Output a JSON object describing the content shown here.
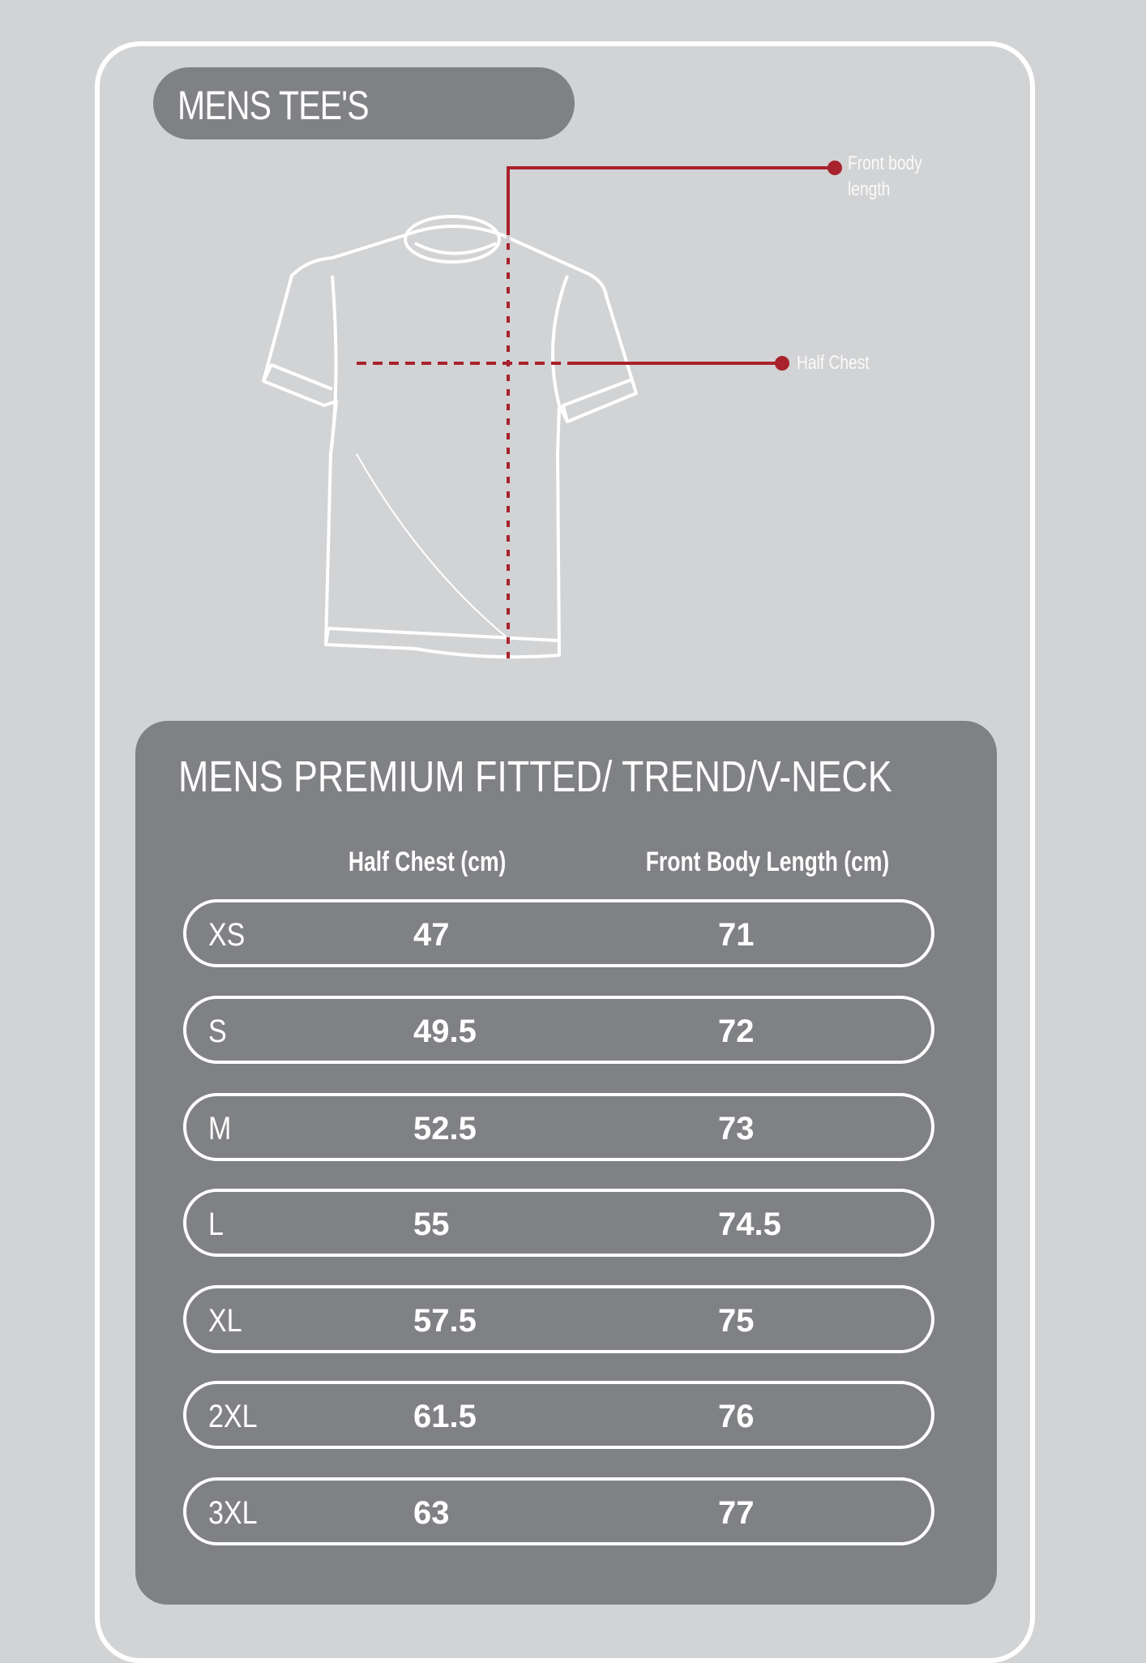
{
  "title": "MENS TEE'S",
  "diagram": {
    "front_body_length_label": "Front body length",
    "half_chest_label": "Half Chest",
    "accent_color": "#a8222c"
  },
  "table": {
    "title": "MENS PREMIUM FITTED/ TREND/V-NECK",
    "headers": [
      "Half Chest (cm)",
      "Front Body Length (cm)"
    ],
    "rows": [
      {
        "size": "XS",
        "half_chest": "47",
        "length": "71"
      },
      {
        "size": "S",
        "half_chest": "49.5",
        "length": "72"
      },
      {
        "size": "M",
        "half_chest": "52.5",
        "length": "73"
      },
      {
        "size": "L",
        "half_chest": "55",
        "length": "74.5"
      },
      {
        "size": "XL",
        "half_chest": "57.5",
        "length": "75"
      },
      {
        "size": "2XL",
        "half_chest": "61.5",
        "length": "76"
      },
      {
        "size": "3XL",
        "half_chest": "63",
        "length": "77"
      }
    ]
  }
}
